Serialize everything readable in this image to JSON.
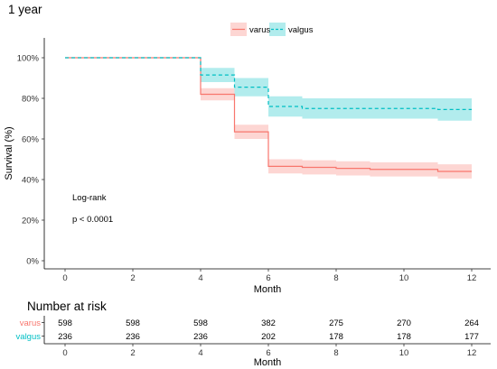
{
  "chart_data": [
    {
      "type": "line",
      "subtype": "kaplan-meier",
      "title": "1 year",
      "xlabel": "Month",
      "ylabel": "Survival (%)",
      "xlim": [
        0,
        12
      ],
      "ylim": [
        0,
        100
      ],
      "x_ticks": [
        0,
        2,
        4,
        6,
        8,
        10,
        12
      ],
      "y_ticks": [
        0,
        20,
        40,
        60,
        80,
        100
      ],
      "y_tick_labels": [
        "0%",
        "20%",
        "40%",
        "60%",
        "80%",
        "100%"
      ],
      "legend_position": "top-center",
      "grid": false,
      "series": [
        {
          "name": "varus",
          "color": "#F8766D",
          "line_style": "solid",
          "steps": [
            {
              "x": 0,
              "y": 100,
              "lo": 100,
              "hi": 100
            },
            {
              "x": 4,
              "y": 82,
              "lo": 79,
              "hi": 85
            },
            {
              "x": 5,
              "y": 63.5,
              "lo": 60,
              "hi": 67
            },
            {
              "x": 6,
              "y": 46.5,
              "lo": 43,
              "hi": 50
            },
            {
              "x": 7,
              "y": 46,
              "lo": 42.5,
              "hi": 49.5
            },
            {
              "x": 8,
              "y": 45.5,
              "lo": 42,
              "hi": 49
            },
            {
              "x": 9,
              "y": 45,
              "lo": 41.5,
              "hi": 48.5
            },
            {
              "x": 11,
              "y": 44,
              "lo": 40.5,
              "hi": 47.5
            },
            {
              "x": 12,
              "y": 44,
              "lo": 40.5,
              "hi": 47.5
            }
          ]
        },
        {
          "name": "valgus",
          "color": "#00BFC4",
          "line_style": "dashed",
          "steps": [
            {
              "x": 0,
              "y": 100,
              "lo": 100,
              "hi": 100
            },
            {
              "x": 4,
              "y": 91.5,
              "lo": 88,
              "hi": 95
            },
            {
              "x": 5,
              "y": 85.5,
              "lo": 81,
              "hi": 90
            },
            {
              "x": 6,
              "y": 76,
              "lo": 71,
              "hi": 81
            },
            {
              "x": 7,
              "y": 75,
              "lo": 70,
              "hi": 80
            },
            {
              "x": 11,
              "y": 74.5,
              "lo": 69,
              "hi": 80
            },
            {
              "x": 12,
              "y": 74.5,
              "lo": 69,
              "hi": 80
            }
          ]
        }
      ],
      "annotations": [
        "Log-rank",
        "p < 0.0001"
      ]
    },
    {
      "type": "table",
      "title": "Number at risk",
      "xlabel": "Month",
      "x_ticks": [
        0,
        2,
        4,
        6,
        8,
        10,
        12
      ],
      "rows": [
        {
          "name": "varus",
          "color": "#F8766D",
          "values": [
            598,
            598,
            598,
            382,
            275,
            270,
            264
          ]
        },
        {
          "name": "valgus",
          "color": "#00BFC4",
          "values": [
            236,
            236,
            236,
            202,
            178,
            178,
            177
          ]
        }
      ]
    }
  ]
}
